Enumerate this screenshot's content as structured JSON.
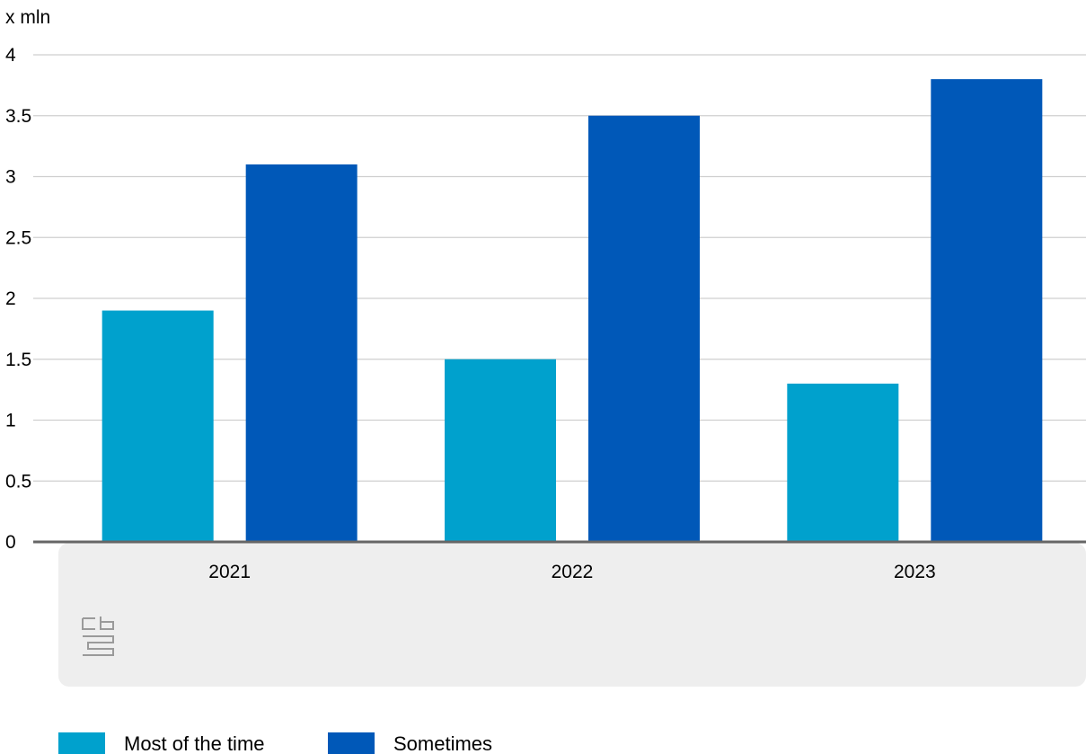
{
  "chart_data": {
    "type": "bar",
    "title": "",
    "xlabel": "",
    "ylabel": "x mln",
    "ylim": [
      0,
      4
    ],
    "yticks": [
      0,
      0.5,
      1,
      1.5,
      2,
      2.5,
      3,
      3.5,
      4
    ],
    "yticks_labels": [
      "0",
      "0.5",
      "1",
      "1.5",
      "2",
      "2.5",
      "3",
      "3.5",
      "4"
    ],
    "grid": true,
    "legend_position": "bottom-left",
    "categories": [
      "2021",
      "2022",
      "2023"
    ],
    "series": [
      {
        "name": "Most of the time",
        "color": "#00a1cd",
        "values": [
          1.9,
          1.5,
          1.3
        ]
      },
      {
        "name": "Sometimes",
        "color": "#0058b8",
        "values": [
          3.1,
          3.5,
          3.8
        ]
      }
    ]
  },
  "branding": {
    "logo_icon": "cbs-logo-icon",
    "logo_text": "cbs",
    "panel_color": "#eeeeee",
    "logo_color": "#9a9a9a"
  }
}
